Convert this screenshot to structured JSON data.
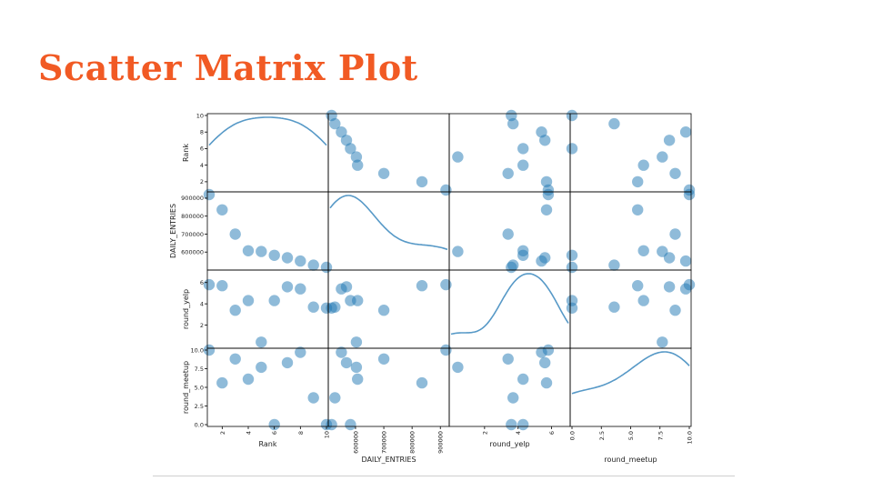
{
  "slide": {
    "title": "Scatter Matrix Plot"
  },
  "colors": {
    "title": "#f15a24",
    "marker": "#1f77b4",
    "kde": "#1f77b4",
    "axis": "#000000"
  },
  "chart_data": {
    "type": "scatter",
    "variables": [
      {
        "name": "Rank",
        "lim": [
          1,
          10
        ],
        "ticks": [
          2,
          4,
          6,
          8,
          10
        ],
        "tick_labels": [
          "2",
          "4",
          "6",
          "8",
          "10"
        ]
      },
      {
        "name": "DAILY_ENTRIES",
        "lim": [
          510000,
          925000
        ],
        "ticks": [
          600000,
          700000,
          800000,
          900000
        ],
        "tick_labels": [
          "600000",
          "700000",
          "800000",
          "900000"
        ]
      },
      {
        "name": "round_yelp",
        "lim": [
          0,
          7
        ],
        "ticks": [
          2,
          4,
          6
        ],
        "tick_labels": [
          "2",
          "4",
          "6"
        ]
      },
      {
        "name": "round_meetup",
        "lim": [
          0,
          10
        ],
        "ticks": [
          0,
          2.5,
          5,
          7.5,
          10
        ],
        "tick_labels": [
          "0.0",
          "2.5",
          "5.0",
          "7.5",
          "10.0"
        ]
      }
    ],
    "points": [
      {
        "Rank": 1,
        "DAILY_ENTRIES": 920000,
        "round_yelp": 5.8,
        "round_meetup": 10
      },
      {
        "Rank": 2,
        "DAILY_ENTRIES": 835000,
        "round_yelp": 5.7,
        "round_meetup": 5.6
      },
      {
        "Rank": 3,
        "DAILY_ENTRIES": 700000,
        "round_yelp": 3.4,
        "round_meetup": 8.8
      },
      {
        "Rank": 4,
        "DAILY_ENTRIES": 607000,
        "round_yelp": 4.3,
        "round_meetup": 6.1
      },
      {
        "Rank": 5,
        "DAILY_ENTRIES": 603000,
        "round_yelp": 0.4,
        "round_meetup": 7.7
      },
      {
        "Rank": 6,
        "DAILY_ENTRIES": 582000,
        "round_yelp": 4.3,
        "round_meetup": 0
      },
      {
        "Rank": 7,
        "DAILY_ENTRIES": 568000,
        "round_yelp": 5.6,
        "round_meetup": 8.3
      },
      {
        "Rank": 8,
        "DAILY_ENTRIES": 550000,
        "round_yelp": 5.4,
        "round_meetup": 9.7
      },
      {
        "Rank": 9,
        "DAILY_ENTRIES": 527000,
        "round_yelp": 3.7,
        "round_meetup": 3.6
      },
      {
        "Rank": 10,
        "DAILY_ENTRIES": 515000,
        "round_yelp": 3.6,
        "round_meetup": 0
      }
    ],
    "diagonal": "kde",
    "grid": false,
    "legend": "none"
  }
}
